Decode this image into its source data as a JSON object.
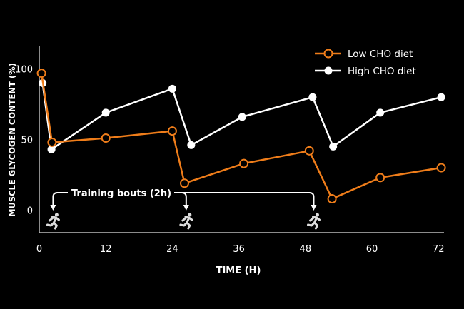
{
  "chart_data": {
    "type": "line",
    "title": "",
    "xlabel": "TIME (H)",
    "ylabel": "MUSCLE GLYCOGEN CONTENT (%)",
    "xlim": [
      0,
      73
    ],
    "ylim": [
      -16,
      116
    ],
    "xticks": [
      0,
      12,
      24,
      36,
      48,
      60,
      72
    ],
    "yticks": [
      0,
      50,
      100
    ],
    "grid": false,
    "legend": "top-right",
    "series": [
      {
        "name": "Low CHO diet",
        "color": "#ef7d1a",
        "marker": "open-circle",
        "x": [
          0.4,
          2.3,
          12,
          24,
          26.2,
          36.9,
          48.7,
          52.8,
          61.5,
          72.5
        ],
        "y": [
          97,
          48,
          51,
          56,
          19,
          33,
          42,
          8,
          23,
          30
        ]
      },
      {
        "name": "High CHO diet",
        "color": "#ffffff",
        "marker": "filled-circle",
        "x": [
          0.6,
          2.2,
          12,
          24,
          27.4,
          36.6,
          49.3,
          53,
          61.5,
          72.5
        ],
        "y": [
          90,
          43,
          69,
          86,
          46,
          66,
          80,
          45,
          69,
          80
        ]
      }
    ],
    "annotation": {
      "label": "Training bouts (2h)",
      "times": [
        2.5,
        26.5,
        49.5
      ],
      "icon": "runner-icon"
    }
  }
}
